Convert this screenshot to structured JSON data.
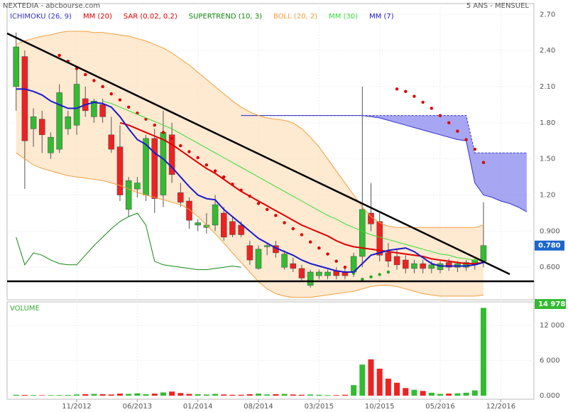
{
  "chart_data": [
    {
      "type": "candlestick",
      "title": "NEXTEDIA - abcbourse.com",
      "subtitle": "5 ANS - MENSUEL",
      "open": [
        2.1,
        2.35,
        1.75,
        1.83,
        1.55,
        1.58,
        1.75,
        1.78,
        2.0,
        1.85,
        1.95,
        1.7,
        1.6,
        1.08,
        1.25,
        1.2,
        1.67,
        1.2,
        1.7,
        1.22,
        1.15,
        0.95,
        0.93,
        0.95,
        1.05,
        0.98,
        0.95,
        0.78,
        0.59,
        0.77,
        0.78,
        0.6,
        0.63,
        0.59,
        0.45,
        0.53,
        0.53,
        0.57,
        0.56,
        0.56,
        0.69,
        1.05,
        0.98,
        0.72,
        0.69,
        0.66,
        0.59,
        0.63,
        0.59,
        0.58,
        0.64,
        0.6,
        0.6,
        0.62,
        0.65,
        null,
        null,
        null,
        null,
        null,
        null
      ],
      "high": [
        2.55,
        2.4,
        1.92,
        1.9,
        1.72,
        2.12,
        1.9,
        2.25,
        2.1,
        2.0,
        2.0,
        1.85,
        1.78,
        1.35,
        1.35,
        1.7,
        1.75,
        1.9,
        1.8,
        1.3,
        1.18,
        1.0,
        1.05,
        1.2,
        1.1,
        1.02,
        0.98,
        0.82,
        0.78,
        0.8,
        0.82,
        0.74,
        0.68,
        0.62,
        0.58,
        0.58,
        0.58,
        0.6,
        0.6,
        0.72,
        2.1,
        1.3,
        1.05,
        0.8,
        0.75,
        0.7,
        0.66,
        0.66,
        0.65,
        0.65,
        0.67,
        0.65,
        0.66,
        0.67,
        1.14,
        null,
        null,
        null,
        null,
        null,
        null
      ],
      "low": [
        1.9,
        1.25,
        1.6,
        1.55,
        1.5,
        1.55,
        1.7,
        1.7,
        1.85,
        1.8,
        1.8,
        1.55,
        1.15,
        1.02,
        1.18,
        1.15,
        1.05,
        1.1,
        1.3,
        1.1,
        0.92,
        0.9,
        0.88,
        0.9,
        0.82,
        0.85,
        0.85,
        0.62,
        0.58,
        0.7,
        0.68,
        0.58,
        0.56,
        0.48,
        0.43,
        0.5,
        0.5,
        0.5,
        0.5,
        0.52,
        0.6,
        0.9,
        0.65,
        0.6,
        0.58,
        0.55,
        0.55,
        0.55,
        0.55,
        0.55,
        0.57,
        0.56,
        0.57,
        0.58,
        0.6,
        null,
        null,
        null,
        null,
        null,
        null
      ],
      "close": [
        2.43,
        1.65,
        1.85,
        1.7,
        1.68,
        2.05,
        1.85,
        2.12,
        1.9,
        1.98,
        1.85,
        1.58,
        1.2,
        1.32,
        1.3,
        1.67,
        1.17,
        1.72,
        1.37,
        1.14,
        0.99,
        0.97,
        0.95,
        1.12,
        0.85,
        0.87,
        0.87,
        0.66,
        0.75,
        0.78,
        0.72,
        0.71,
        0.59,
        0.51,
        0.56,
        0.56,
        0.56,
        0.53,
        0.53,
        0.69,
        1.08,
        0.96,
        0.7,
        0.65,
        0.62,
        0.59,
        0.63,
        0.59,
        0.62,
        0.63,
        0.6,
        0.63,
        0.64,
        0.66,
        0.78,
        null,
        null,
        null,
        null,
        null,
        null
      ],
      "value_labels": [
        null,
        null,
        null,
        null,
        null,
        null,
        null,
        null,
        null,
        null,
        null,
        null,
        null,
        null,
        null,
        null,
        null,
        null,
        null,
        null,
        null,
        null,
        null,
        null,
        null,
        null,
        null,
        null,
        null,
        null,
        null,
        null,
        null,
        null,
        null,
        null,
        null,
        null,
        null,
        null,
        null,
        null,
        null,
        null,
        null,
        null,
        null,
        null,
        null,
        null,
        null,
        null,
        null,
        null,
        "0.780",
        null,
        null,
        null,
        null,
        null,
        null
      ],
      "label_color": "#1a66cc",
      "up_color": "#33bb33",
      "down_color": "#ee2222",
      "ylim": [
        0.33,
        2.79
      ],
      "yticks": [
        {
          "value": 0.6,
          "label": "0.600"
        },
        {
          "value": 0.9,
          "label": "0.900"
        },
        {
          "value": 1.2,
          "label": "1.20"
        },
        {
          "value": 1.5,
          "label": "1.50"
        },
        {
          "value": 1.8,
          "label": "1.80"
        },
        {
          "value": 2.1,
          "label": "2.10"
        },
        {
          "value": 2.4,
          "label": "2.40"
        },
        {
          "value": 2.7,
          "label": "2.70"
        }
      ],
      "grid": true,
      "series": [
        {
          "name": "ICHIMOKU (26, 9)",
          "color": "#3333cc",
          "style": "cloud",
          "values": [
            null,
            null,
            null,
            null,
            null,
            null,
            null,
            null,
            null,
            null,
            null,
            null,
            null,
            null,
            null,
            null,
            null,
            null,
            null,
            null,
            null,
            null,
            null,
            null,
            null,
            null,
            1.86,
            1.86,
            1.86,
            1.86,
            1.86,
            1.86,
            1.86,
            1.86,
            1.86,
            1.86,
            1.86,
            1.86,
            1.86,
            1.86,
            1.86,
            1.86,
            1.86,
            1.86,
            1.86,
            1.86,
            1.86,
            1.86,
            1.86,
            1.86,
            1.86,
            1.86,
            1.86,
            1.55,
            1.55,
            1.55,
            1.55,
            1.55,
            1.55,
            1.55,
            null
          ],
          "lower": [
            null,
            null,
            null,
            null,
            null,
            null,
            null,
            null,
            null,
            null,
            null,
            null,
            null,
            null,
            null,
            null,
            null,
            null,
            null,
            null,
            null,
            null,
            null,
            null,
            null,
            null,
            1.86,
            1.86,
            1.86,
            1.86,
            1.86,
            1.86,
            1.86,
            1.86,
            1.86,
            1.86,
            1.86,
            1.86,
            1.86,
            1.86,
            1.86,
            1.85,
            1.84,
            1.82,
            1.8,
            1.78,
            1.76,
            1.74,
            1.72,
            1.7,
            1.68,
            1.66,
            1.65,
            1.3,
            1.2,
            1.18,
            1.15,
            1.13,
            1.1,
            1.06,
            null
          ]
        },
        {
          "name": "MM (20)",
          "color": "#e00000",
          "style": "line",
          "values": [
            null,
            null,
            null,
            null,
            null,
            null,
            null,
            null,
            null,
            null,
            null,
            null,
            1.8,
            1.78,
            1.75,
            1.72,
            1.69,
            1.66,
            1.62,
            1.57,
            1.52,
            1.47,
            1.42,
            1.38,
            1.33,
            1.28,
            1.23,
            1.19,
            1.15,
            1.11,
            1.07,
            1.03,
            0.99,
            0.95,
            0.92,
            0.89,
            0.86,
            0.82,
            0.79,
            0.77,
            0.76,
            0.75,
            0.74,
            0.73,
            0.72,
            0.71,
            0.7,
            0.69,
            0.67,
            0.66,
            0.65,
            0.64,
            0.63,
            0.63,
            0.64,
            null,
            null,
            null,
            null,
            null,
            null
          ]
        },
        {
          "name": "SAR (0.02, 0.2)",
          "color": "#dd0000",
          "color_below": "#22aa22",
          "style": "dots",
          "values": [
            null,
            null,
            null,
            null,
            null,
            2.36,
            2.31,
            2.25,
            2.2,
            2.15,
            2.1,
            2.04,
            1.99,
            1.93,
            1.88,
            1.83,
            1.78,
            1.72,
            1.67,
            1.61,
            1.56,
            1.51,
            1.45,
            1.4,
            1.35,
            1.29,
            1.24,
            1.19,
            1.13,
            1.08,
            1.03,
            0.97,
            0.92,
            0.87,
            0.81,
            0.76,
            0.71,
            0.65,
            0.6,
            0.55,
            0.5,
            0.52,
            0.54,
            0.56,
            2.08,
            2.06,
            2.02,
            1.97,
            1.92,
            1.86,
            1.8,
            1.73,
            1.66,
            1.58,
            1.47,
            null,
            null,
            null,
            null,
            null,
            null
          ]
        },
        {
          "name": "SUPERTREND (10, 3)",
          "color": "#118811",
          "style": "line",
          "values": [
            0.85,
            0.62,
            0.72,
            0.7,
            0.66,
            0.63,
            0.62,
            0.62,
            0.7,
            0.78,
            0.85,
            0.92,
            0.98,
            1.02,
            1.05,
            0.95,
            0.65,
            0.62,
            0.61,
            0.6,
            0.59,
            0.58,
            0.58,
            0.59,
            0.6,
            0.61,
            0.6,
            null,
            null,
            null,
            null,
            null,
            null,
            null,
            null,
            null,
            null,
            null,
            null,
            null,
            null,
            null,
            null,
            null,
            null,
            null,
            null,
            null,
            null,
            null,
            null,
            null,
            null,
            null,
            null,
            null,
            null,
            null,
            null,
            null,
            null
          ]
        },
        {
          "name": "BOLL (20, 2)",
          "color": "#f0a040",
          "style": "band",
          "values": [
            2.45,
            2.48,
            2.5,
            2.52,
            2.53,
            2.55,
            2.56,
            2.56,
            2.56,
            2.55,
            2.55,
            2.54,
            2.53,
            2.52,
            2.5,
            2.48,
            2.45,
            2.42,
            2.38,
            2.33,
            2.28,
            2.22,
            2.16,
            2.1,
            2.04,
            1.98,
            1.93,
            1.89,
            1.86,
            1.84,
            1.83,
            1.82,
            1.8,
            1.75,
            1.68,
            1.6,
            1.5,
            1.4,
            1.3,
            1.2,
            1.1,
            1.02,
            0.97,
            0.94,
            0.93,
            0.93,
            0.93,
            0.93,
            0.93,
            0.93,
            0.93,
            0.93,
            0.93,
            0.93,
            0.95,
            null,
            null,
            null,
            null,
            null,
            null
          ],
          "lower": [
            1.55,
            1.5,
            1.45,
            1.42,
            1.4,
            1.38,
            1.36,
            1.35,
            1.34,
            1.33,
            1.32,
            1.3,
            1.28,
            1.25,
            1.22,
            1.2,
            1.18,
            1.16,
            1.14,
            1.12,
            1.08,
            1.02,
            0.95,
            0.88,
            0.8,
            0.72,
            0.64,
            0.56,
            0.48,
            0.42,
            0.38,
            0.36,
            0.35,
            0.35,
            0.35,
            0.36,
            0.37,
            0.38,
            0.39,
            0.4,
            0.42,
            0.44,
            0.45,
            0.45,
            0.44,
            0.42,
            0.4,
            0.38,
            0.37,
            0.36,
            0.36,
            0.36,
            0.36,
            0.36,
            0.37,
            null,
            null,
            null,
            null,
            null,
            null
          ]
        },
        {
          "name": "MM (30)",
          "color": "#33dd33",
          "style": "line",
          "values": [
            null,
            null,
            null,
            null,
            null,
            null,
            null,
            null,
            null,
            null,
            1.98,
            1.96,
            1.93,
            1.9,
            1.87,
            1.84,
            1.81,
            1.78,
            1.75,
            1.71,
            1.67,
            1.63,
            1.59,
            1.55,
            1.51,
            1.47,
            1.43,
            1.39,
            1.35,
            1.31,
            1.27,
            1.23,
            1.19,
            1.15,
            1.11,
            1.07,
            1.03,
            1.0,
            0.96,
            0.93,
            0.9,
            0.87,
            0.85,
            0.83,
            0.81,
            0.79,
            0.77,
            0.75,
            0.73,
            0.71,
            0.7,
            0.68,
            0.67,
            0.66,
            0.66,
            null,
            null,
            null,
            null,
            null,
            null
          ]
        },
        {
          "name": "MM (7)",
          "color": "#1a1acc",
          "style": "line",
          "values": [
            2.08,
            2.08,
            2.06,
            2.03,
            1.98,
            1.95,
            1.92,
            1.92,
            1.95,
            1.97,
            1.96,
            1.93,
            1.85,
            1.75,
            1.66,
            1.62,
            1.55,
            1.5,
            1.43,
            1.35,
            1.27,
            1.2,
            1.17,
            1.16,
            1.08,
            1.02,
            0.96,
            0.9,
            0.84,
            0.8,
            0.76,
            0.73,
            0.7,
            0.66,
            0.63,
            0.61,
            0.59,
            0.57,
            0.56,
            0.56,
            0.63,
            0.7,
            0.72,
            0.74,
            0.75,
            0.76,
            0.73,
            0.68,
            0.63,
            0.61,
            0.61,
            0.61,
            0.61,
            0.62,
            0.64,
            null,
            null,
            null,
            null,
            null,
            null
          ]
        }
      ]
    },
    {
      "type": "bar",
      "title": "VOLUME",
      "categories": [
        null,
        null,
        null,
        null,
        null,
        null,
        null,
        "11/2012",
        null,
        null,
        null,
        null,
        null,
        null,
        "06/2013",
        null,
        null,
        null,
        null,
        null,
        null,
        "01/2014",
        null,
        null,
        null,
        null,
        null,
        null,
        "08/2014",
        null,
        null,
        null,
        null,
        null,
        null,
        "03/2015",
        null,
        null,
        null,
        null,
        null,
        null,
        "10/2015",
        null,
        null,
        null,
        null,
        null,
        null,
        "05/2016",
        null,
        null,
        null,
        null,
        null,
        null,
        "12/2016",
        null,
        null,
        null,
        null
      ],
      "values": [
        150,
        120,
        100,
        80,
        90,
        100,
        120,
        200,
        250,
        300,
        250,
        200,
        350,
        300,
        400,
        250,
        350,
        550,
        700,
        450,
        300,
        250,
        200,
        300,
        200,
        150,
        150,
        250,
        350,
        200,
        250,
        300,
        200,
        150,
        200,
        150,
        100,
        100,
        150,
        1800,
        5300,
        6200,
        4600,
        2900,
        2200,
        1300,
        1000,
        800,
        500,
        300,
        350,
        400,
        500,
        900,
        14978,
        null,
        null,
        null,
        null,
        null,
        null
      ],
      "value_labels": [
        null,
        null,
        null,
        null,
        null,
        null,
        null,
        null,
        null,
        null,
        null,
        null,
        null,
        null,
        null,
        null,
        null,
        null,
        null,
        null,
        null,
        null,
        null,
        null,
        null,
        null,
        null,
        null,
        null,
        null,
        null,
        null,
        null,
        null,
        null,
        null,
        null,
        null,
        null,
        null,
        null,
        null,
        null,
        null,
        null,
        null,
        null,
        null,
        null,
        null,
        null,
        null,
        null,
        null,
        "14 978",
        null,
        null,
        null,
        null,
        null,
        null
      ],
      "label_color": "#33bb33",
      "title_color": "#33aa33",
      "ylim": [
        0,
        16000
      ],
      "yticks": [
        {
          "value": 0,
          "label": "0.000"
        },
        {
          "value": 6000,
          "label": "6 000"
        },
        {
          "value": 12000,
          "label": "12 000"
        }
      ],
      "grid": true
    }
  ]
}
